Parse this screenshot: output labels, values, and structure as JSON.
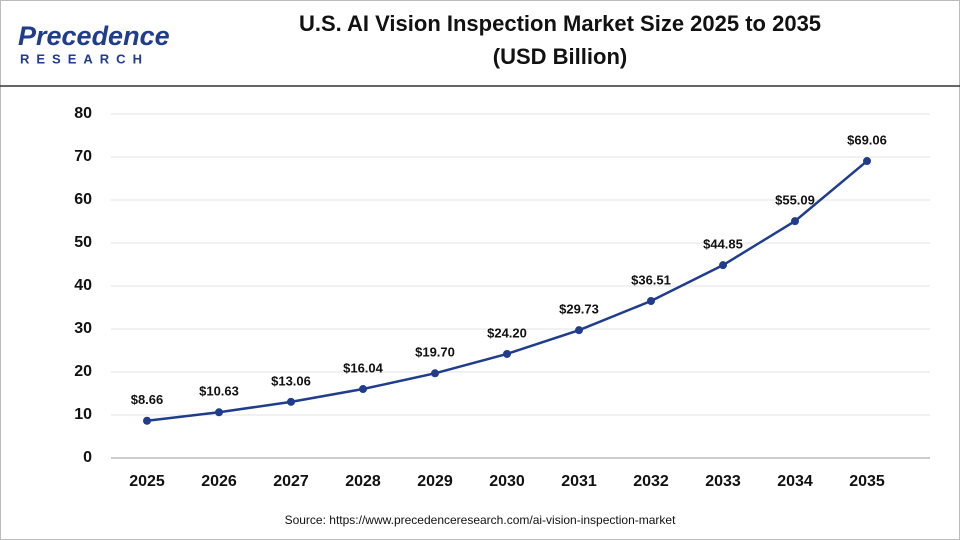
{
  "logo": {
    "name": "Precedence",
    "tagline": "RESEARCH"
  },
  "chart_data": {
    "type": "line",
    "title": "U.S. AI Vision Inspection Market Size 2025 to 2035",
    "subtitle": "(USD Billion)",
    "categories": [
      "2025",
      "2026",
      "2027",
      "2028",
      "2029",
      "2030",
      "2031",
      "2032",
      "2033",
      "2034",
      "2035"
    ],
    "values": [
      8.66,
      10.63,
      13.06,
      16.04,
      19.7,
      24.2,
      29.73,
      36.51,
      44.85,
      55.09,
      69.06
    ],
    "value_labels": [
      "$8.66",
      "$10.63",
      "$13.06",
      "$16.04",
      "$19.70",
      "$24.20",
      "$29.73",
      "$36.51",
      "$44.85",
      "$55.09",
      "$69.06"
    ],
    "color": "#1f3d8c",
    "ylim": [
      0,
      80
    ],
    "yticks": [
      0,
      10,
      20,
      30,
      40,
      50,
      60,
      70,
      80
    ],
    "grid": true,
    "source": "Source: https://www.precedenceresearch.com/ai-vision-inspection-market"
  }
}
